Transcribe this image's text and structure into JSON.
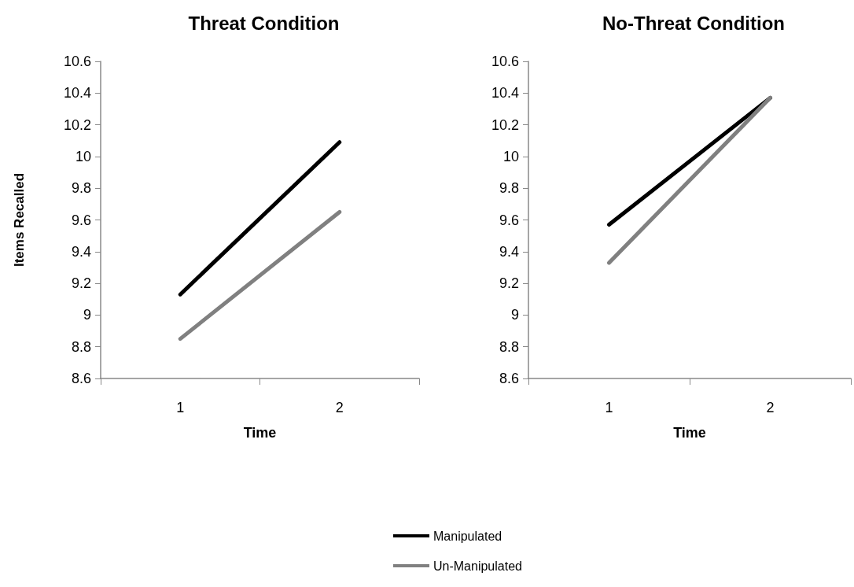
{
  "chart_data": [
    {
      "type": "line",
      "title": "Threat Condition",
      "xlabel": "Time",
      "ylabel": "Items Recalled",
      "categories": [
        "1",
        "2"
      ],
      "ylim": [
        8.6,
        10.6
      ],
      "yticks": [
        8.6,
        8.8,
        9,
        9.2,
        9.4,
        9.6,
        9.8,
        10,
        10.2,
        10.4,
        10.6
      ],
      "marker": "none",
      "legend": "bottom",
      "series": [
        {
          "name": "Manipulated",
          "color": "#000000",
          "values": [
            9.13,
            10.09
          ]
        },
        {
          "name": "Un-Manipulated",
          "color": "#808080",
          "values": [
            8.85,
            9.65
          ]
        }
      ]
    },
    {
      "type": "line",
      "title": "No-Threat Condition",
      "xlabel": "Time",
      "categories": [
        "1",
        "2"
      ],
      "ylim": [
        8.6,
        10.6
      ],
      "yticks": [
        8.6,
        8.8,
        9,
        9.2,
        9.4,
        9.6,
        9.8,
        10,
        10.2,
        10.4,
        10.6
      ],
      "marker": "none",
      "series": [
        {
          "color": "#000000",
          "values": [
            9.57,
            10.37
          ]
        },
        {
          "color": "#808080",
          "values": [
            9.33,
            10.37
          ]
        }
      ]
    }
  ]
}
